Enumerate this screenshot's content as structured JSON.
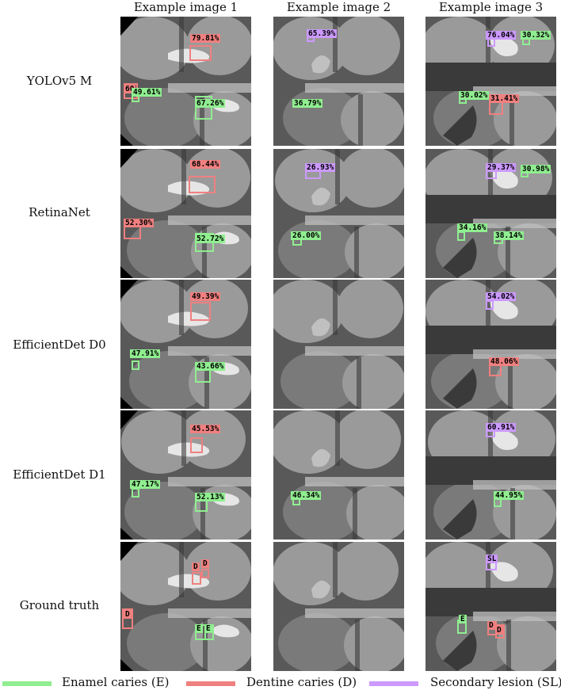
{
  "columns": [
    "Example image 1",
    "Example image 2",
    "Example image 3"
  ],
  "rows": [
    "YOLOv5 M",
    "RetinaNet",
    "EfficientDet D0",
    "EfficientDet D1",
    "Ground truth"
  ],
  "colors": {
    "E": "#90ee90",
    "D": "#f08080",
    "SL": "#cc99ff"
  },
  "legend": [
    {
      "key": "E",
      "label": "Enamel caries (E)"
    },
    {
      "key": "D",
      "label": "Dentine caries (D)"
    },
    {
      "key": "SL",
      "label": "Secondary lesion (SL)"
    }
  ],
  "detections": [
    [
      [
        {
          "cls": "D",
          "text": "79.81%"
        },
        {
          "cls": "D",
          "text": "60"
        },
        {
          "cls": "E",
          "text": "49.61%"
        },
        {
          "cls": "E",
          "text": "67.26%"
        }
      ],
      [
        {
          "cls": "SL",
          "text": "65.39%"
        },
        {
          "cls": "E",
          "text": "36.79%"
        }
      ],
      [
        {
          "cls": "SL",
          "text": "76.04%"
        },
        {
          "cls": "E",
          "text": "30.32%"
        },
        {
          "cls": "E",
          "text": "30.02%"
        },
        {
          "cls": "D",
          "text": "31.41%"
        }
      ]
    ],
    [
      [
        {
          "cls": "D",
          "text": "68.44%"
        },
        {
          "cls": "D",
          "text": "52.30%"
        },
        {
          "cls": "E",
          "text": "52.72%"
        }
      ],
      [
        {
          "cls": "SL",
          "text": "26.93%"
        },
        {
          "cls": "E",
          "text": "26.00%"
        }
      ],
      [
        {
          "cls": "SL",
          "text": "29.37%"
        },
        {
          "cls": "E",
          "text": "30.98%"
        },
        {
          "cls": "E",
          "text": "34.16%"
        },
        {
          "cls": "E",
          "text": "38.14%"
        }
      ]
    ],
    [
      [
        {
          "cls": "D",
          "text": "49.39%"
        },
        {
          "cls": "E",
          "text": "47.91%"
        },
        {
          "cls": "E",
          "text": "43.66%"
        }
      ],
      [],
      [
        {
          "cls": "SL",
          "text": "54.02%"
        },
        {
          "cls": "D",
          "text": "48.06%"
        }
      ]
    ],
    [
      [
        {
          "cls": "D",
          "text": "45.53%"
        },
        {
          "cls": "E",
          "text": "47.17%"
        },
        {
          "cls": "E",
          "text": "52.13%"
        }
      ],
      [
        {
          "cls": "E",
          "text": "46.34%"
        }
      ],
      [
        {
          "cls": "SL",
          "text": "60.91%"
        },
        {
          "cls": "E",
          "text": "44.95%"
        }
      ]
    ],
    [
      [
        {
          "cls": "D",
          "text": "D"
        },
        {
          "cls": "D",
          "text": "D"
        },
        {
          "cls": "D",
          "text": "D"
        },
        {
          "cls": "E",
          "text": "E"
        },
        {
          "cls": "E",
          "text": "E"
        }
      ],
      [],
      [
        {
          "cls": "SL",
          "text": "SL"
        },
        {
          "cls": "E",
          "text": "E"
        },
        {
          "cls": "D",
          "text": "D"
        },
        {
          "cls": "D",
          "text": "D"
        }
      ]
    ]
  ]
}
